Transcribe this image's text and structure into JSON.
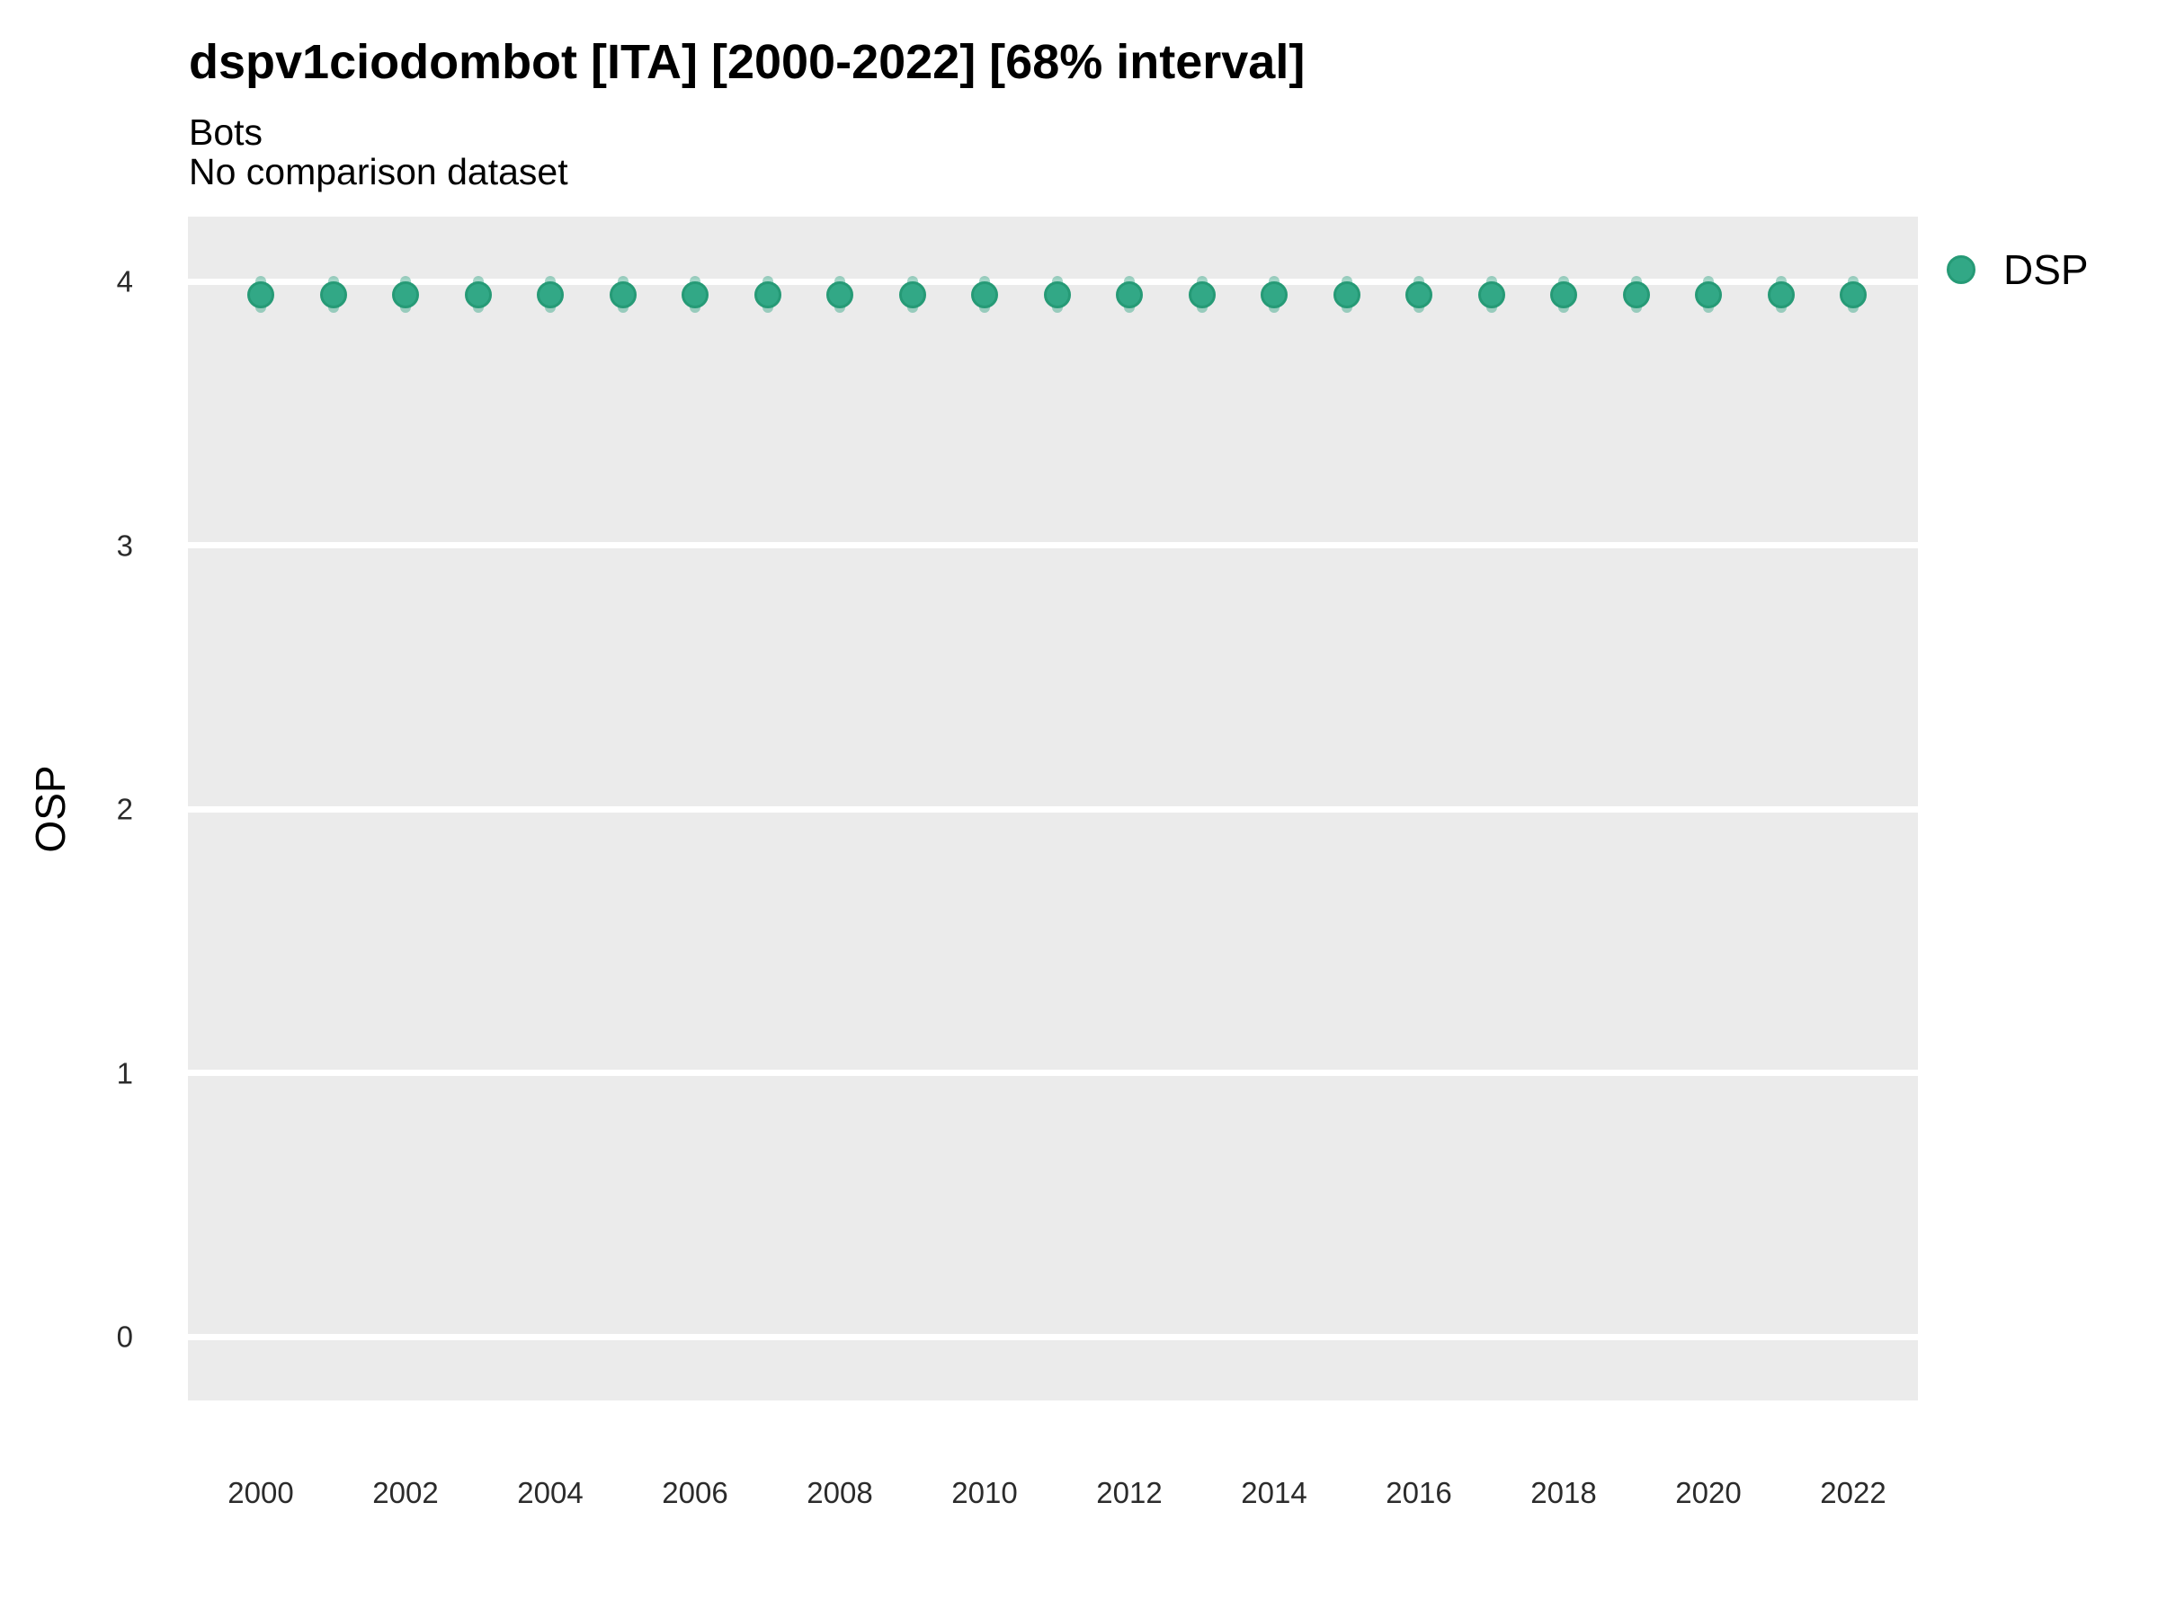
{
  "header": {
    "title": "dspv1ciodombot [ITA] [2000-2022] [68% interval]",
    "subtitle1": "Bots",
    "subtitle2": "No comparison dataset"
  },
  "legend": {
    "position": "right",
    "items": [
      {
        "label": "DSP",
        "color": "#30A583"
      }
    ]
  },
  "chart_data": {
    "type": "scatter",
    "title": "dspv1ciodombot [ITA] [2000-2022] [68% interval]",
    "subtitle": "Bots",
    "note": "No comparison dataset",
    "interval": "68%",
    "xlabel": "",
    "ylabel": "OSP",
    "x": [
      2000,
      2001,
      2002,
      2003,
      2004,
      2005,
      2006,
      2007,
      2008,
      2009,
      2010,
      2011,
      2012,
      2013,
      2014,
      2015,
      2016,
      2017,
      2018,
      2019,
      2020,
      2021,
      2022
    ],
    "series": [
      {
        "name": "DSP",
        "values": [
          3.95,
          3.95,
          3.95,
          3.95,
          3.95,
          3.95,
          3.95,
          3.95,
          3.95,
          3.95,
          3.95,
          3.95,
          3.95,
          3.95,
          3.95,
          3.95,
          3.95,
          3.95,
          3.95,
          3.95,
          3.95,
          3.95,
          3.95
        ],
        "interval_low": [
          3.88,
          3.88,
          3.88,
          3.88,
          3.88,
          3.88,
          3.88,
          3.88,
          3.88,
          3.88,
          3.88,
          3.88,
          3.88,
          3.88,
          3.88,
          3.88,
          3.88,
          3.88,
          3.88,
          3.88,
          3.88,
          3.88,
          3.88
        ],
        "interval_high": [
          4.02,
          4.02,
          4.02,
          4.02,
          4.02,
          4.02,
          4.02,
          4.02,
          4.02,
          4.02,
          4.02,
          4.02,
          4.02,
          4.02,
          4.02,
          4.02,
          4.02,
          4.02,
          4.02,
          4.02,
          4.02,
          4.02,
          4.02
        ]
      }
    ],
    "yticks": [
      0,
      1,
      2,
      3,
      4
    ],
    "xticks": [
      2000,
      2002,
      2004,
      2006,
      2008,
      2010,
      2012,
      2014,
      2016,
      2018,
      2020,
      2022
    ],
    "ylim": [
      -0.24,
      4.25
    ],
    "xlim": [
      1999,
      2023
    ],
    "grid": "horizontal-major-only",
    "legend_position": "right",
    "colors": {
      "point_fill": "#32A886",
      "point_rim": "#269A76",
      "interval_bar": "rgba(48,165,131,0.45)",
      "panel_background": "#EBEBEB",
      "gridline": "#FFFFFF"
    }
  }
}
